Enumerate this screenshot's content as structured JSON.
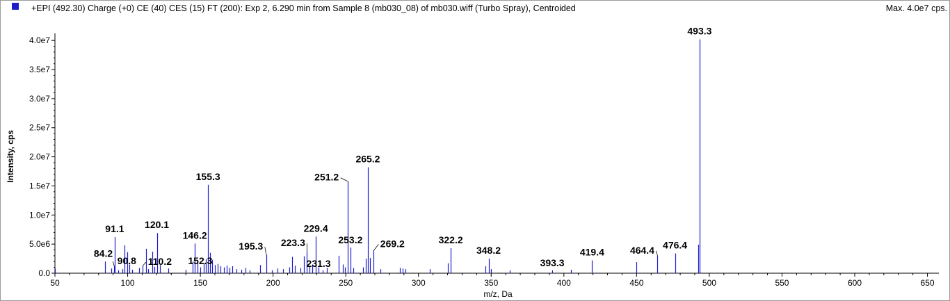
{
  "header": {
    "title": "+EPI (492.30) Charge (+0) CE (40) CES (15) FT (200): Exp 2, 6.290 min from Sample 8 (mb030_08) of mb030.wiff (Turbo Spray), Centroided",
    "max_label": "Max. 4.0e7 cps.",
    "marker_color": "#1c1cc8"
  },
  "chart_data": {
    "type": "bar",
    "xlabel": "m/z, Da",
    "ylabel": "Intensity, cps",
    "xlim": [
      50,
      655
    ],
    "ylim": [
      0,
      40500000
    ],
    "x_ticks": [
      50,
      100,
      150,
      200,
      250,
      300,
      350,
      400,
      450,
      500,
      550,
      600,
      650
    ],
    "y_ticks": [
      {
        "value": 0,
        "label": "0.0"
      },
      {
        "value": 5000000,
        "label": "5.0e6"
      },
      {
        "value": 10000000,
        "label": "1.0e7"
      },
      {
        "value": 15000000,
        "label": "1.5e7"
      },
      {
        "value": 20000000,
        "label": "2.0e7"
      },
      {
        "value": 25000000,
        "label": "2.5e7"
      },
      {
        "value": 30000000,
        "label": "3.0e7"
      },
      {
        "value": 35000000,
        "label": "3.5e7"
      },
      {
        "value": 40000000,
        "label": "4.0e7"
      }
    ],
    "bar_color": "#1c1cc8",
    "peaks": [
      {
        "mz": 50.0,
        "intensity": 800000
      },
      {
        "mz": 84.2,
        "intensity": 2000000
      },
      {
        "mz": 88.5,
        "intensity": 800000
      },
      {
        "mz": 90.8,
        "intensity": 1200000
      },
      {
        "mz": 91.1,
        "intensity": 6200000
      },
      {
        "mz": 93.5,
        "intensity": 500000
      },
      {
        "mz": 96.5,
        "intensity": 700000
      },
      {
        "mz": 98.0,
        "intensity": 4800000
      },
      {
        "mz": 99.5,
        "intensity": 3600000
      },
      {
        "mz": 101.0,
        "intensity": 1500000
      },
      {
        "mz": 103.0,
        "intensity": 600000
      },
      {
        "mz": 108.0,
        "intensity": 900000
      },
      {
        "mz": 110.2,
        "intensity": 1200000
      },
      {
        "mz": 112.5,
        "intensity": 4200000
      },
      {
        "mz": 114.0,
        "intensity": 700000
      },
      {
        "mz": 117.0,
        "intensity": 3700000
      },
      {
        "mz": 118.5,
        "intensity": 1100000
      },
      {
        "mz": 120.1,
        "intensity": 6900000
      },
      {
        "mz": 122.0,
        "intensity": 1400000
      },
      {
        "mz": 128.0,
        "intensity": 800000
      },
      {
        "mz": 140.0,
        "intensity": 600000
      },
      {
        "mz": 144.5,
        "intensity": 2000000
      },
      {
        "mz": 146.2,
        "intensity": 5100000
      },
      {
        "mz": 148.0,
        "intensity": 1800000
      },
      {
        "mz": 150.0,
        "intensity": 1000000
      },
      {
        "mz": 152.3,
        "intensity": 1700000
      },
      {
        "mz": 154.0,
        "intensity": 2400000
      },
      {
        "mz": 155.3,
        "intensity": 15200000
      },
      {
        "mz": 156.5,
        "intensity": 3500000
      },
      {
        "mz": 158.0,
        "intensity": 2300000
      },
      {
        "mz": 160.0,
        "intensity": 1400000
      },
      {
        "mz": 162.0,
        "intensity": 1600000
      },
      {
        "mz": 164.0,
        "intensity": 1200000
      },
      {
        "mz": 166.0,
        "intensity": 1000000
      },
      {
        "mz": 168.0,
        "intensity": 1300000
      },
      {
        "mz": 170.0,
        "intensity": 900000
      },
      {
        "mz": 172.0,
        "intensity": 1200000
      },
      {
        "mz": 175.0,
        "intensity": 700000
      },
      {
        "mz": 178.0,
        "intensity": 600000
      },
      {
        "mz": 181.0,
        "intensity": 900000
      },
      {
        "mz": 184.0,
        "intensity": 500000
      },
      {
        "mz": 191.0,
        "intensity": 1400000
      },
      {
        "mz": 195.3,
        "intensity": 3200000
      },
      {
        "mz": 199.0,
        "intensity": 500000
      },
      {
        "mz": 203.0,
        "intensity": 800000
      },
      {
        "mz": 207.0,
        "intensity": 700000
      },
      {
        "mz": 211.0,
        "intensity": 1000000
      },
      {
        "mz": 213.0,
        "intensity": 2800000
      },
      {
        "mz": 215.0,
        "intensity": 1300000
      },
      {
        "mz": 219.0,
        "intensity": 900000
      },
      {
        "mz": 221.0,
        "intensity": 2900000
      },
      {
        "mz": 223.3,
        "intensity": 3800000
      },
      {
        "mz": 225.0,
        "intensity": 1200000
      },
      {
        "mz": 227.0,
        "intensity": 1500000
      },
      {
        "mz": 229.4,
        "intensity": 6300000
      },
      {
        "mz": 231.3,
        "intensity": 1000000
      },
      {
        "mz": 234.0,
        "intensity": 500000
      },
      {
        "mz": 237.0,
        "intensity": 900000
      },
      {
        "mz": 245.0,
        "intensity": 3000000
      },
      {
        "mz": 248.0,
        "intensity": 1500000
      },
      {
        "mz": 249.5,
        "intensity": 1000000
      },
      {
        "mz": 251.2,
        "intensity": 15800000
      },
      {
        "mz": 253.2,
        "intensity": 4400000
      },
      {
        "mz": 255.0,
        "intensity": 900000
      },
      {
        "mz": 262.0,
        "intensity": 1000000
      },
      {
        "mz": 264.0,
        "intensity": 2500000
      },
      {
        "mz": 265.2,
        "intensity": 18200000
      },
      {
        "mz": 266.5,
        "intensity": 2600000
      },
      {
        "mz": 269.2,
        "intensity": 3900000
      },
      {
        "mz": 274.0,
        "intensity": 700000
      },
      {
        "mz": 287.0,
        "intensity": 900000
      },
      {
        "mz": 289.0,
        "intensity": 800000
      },
      {
        "mz": 291.0,
        "intensity": 700000
      },
      {
        "mz": 308.0,
        "intensity": 700000
      },
      {
        "mz": 320.0,
        "intensity": 1700000
      },
      {
        "mz": 322.2,
        "intensity": 4300000
      },
      {
        "mz": 346.0,
        "intensity": 1200000
      },
      {
        "mz": 348.2,
        "intensity": 2500000
      },
      {
        "mz": 350.0,
        "intensity": 700000
      },
      {
        "mz": 363.0,
        "intensity": 500000
      },
      {
        "mz": 392.0,
        "intensity": 500000
      },
      {
        "mz": 405.0,
        "intensity": 600000
      },
      {
        "mz": 419.4,
        "intensity": 2200000
      },
      {
        "mz": 450.0,
        "intensity": 1900000
      },
      {
        "mz": 464.4,
        "intensity": 3000000
      },
      {
        "mz": 476.4,
        "intensity": 3400000
      },
      {
        "mz": 492.2,
        "intensity": 4900000
      },
      {
        "mz": 493.3,
        "intensity": 40200000
      }
    ],
    "annotations": [
      {
        "text": "84.2",
        "mz": 84.2
      },
      {
        "text": "90.8",
        "mz": 90.8
      },
      {
        "text": "91.1",
        "mz": 91.1
      },
      {
        "text": "110.2",
        "mz": 110.2
      },
      {
        "text": "120.1",
        "mz": 120.1
      },
      {
        "text": "146.2",
        "mz": 146.2
      },
      {
        "text": "152.3",
        "mz": 152.3
      },
      {
        "text": "155.3",
        "mz": 155.3
      },
      {
        "text": "195.3",
        "mz": 195.3
      },
      {
        "text": "223.3",
        "mz": 223.3
      },
      {
        "text": "229.4",
        "mz": 229.4
      },
      {
        "text": "231.3",
        "mz": 231.3
      },
      {
        "text": "251.2",
        "mz": 251.2
      },
      {
        "text": "253.2",
        "mz": 253.2
      },
      {
        "text": "265.2",
        "mz": 265.2
      },
      {
        "text": "269.2",
        "mz": 269.2
      },
      {
        "text": "322.2",
        "mz": 322.2
      },
      {
        "text": "348.2",
        "mz": 348.2
      },
      {
        "text": "393.3",
        "mz": 393.3
      },
      {
        "text": "419.4",
        "mz": 419.4
      },
      {
        "text": "464.4",
        "mz": 464.4
      },
      {
        "text": "476.4",
        "mz": 476.4
      },
      {
        "text": "493.3",
        "mz": 493.3
      }
    ]
  }
}
